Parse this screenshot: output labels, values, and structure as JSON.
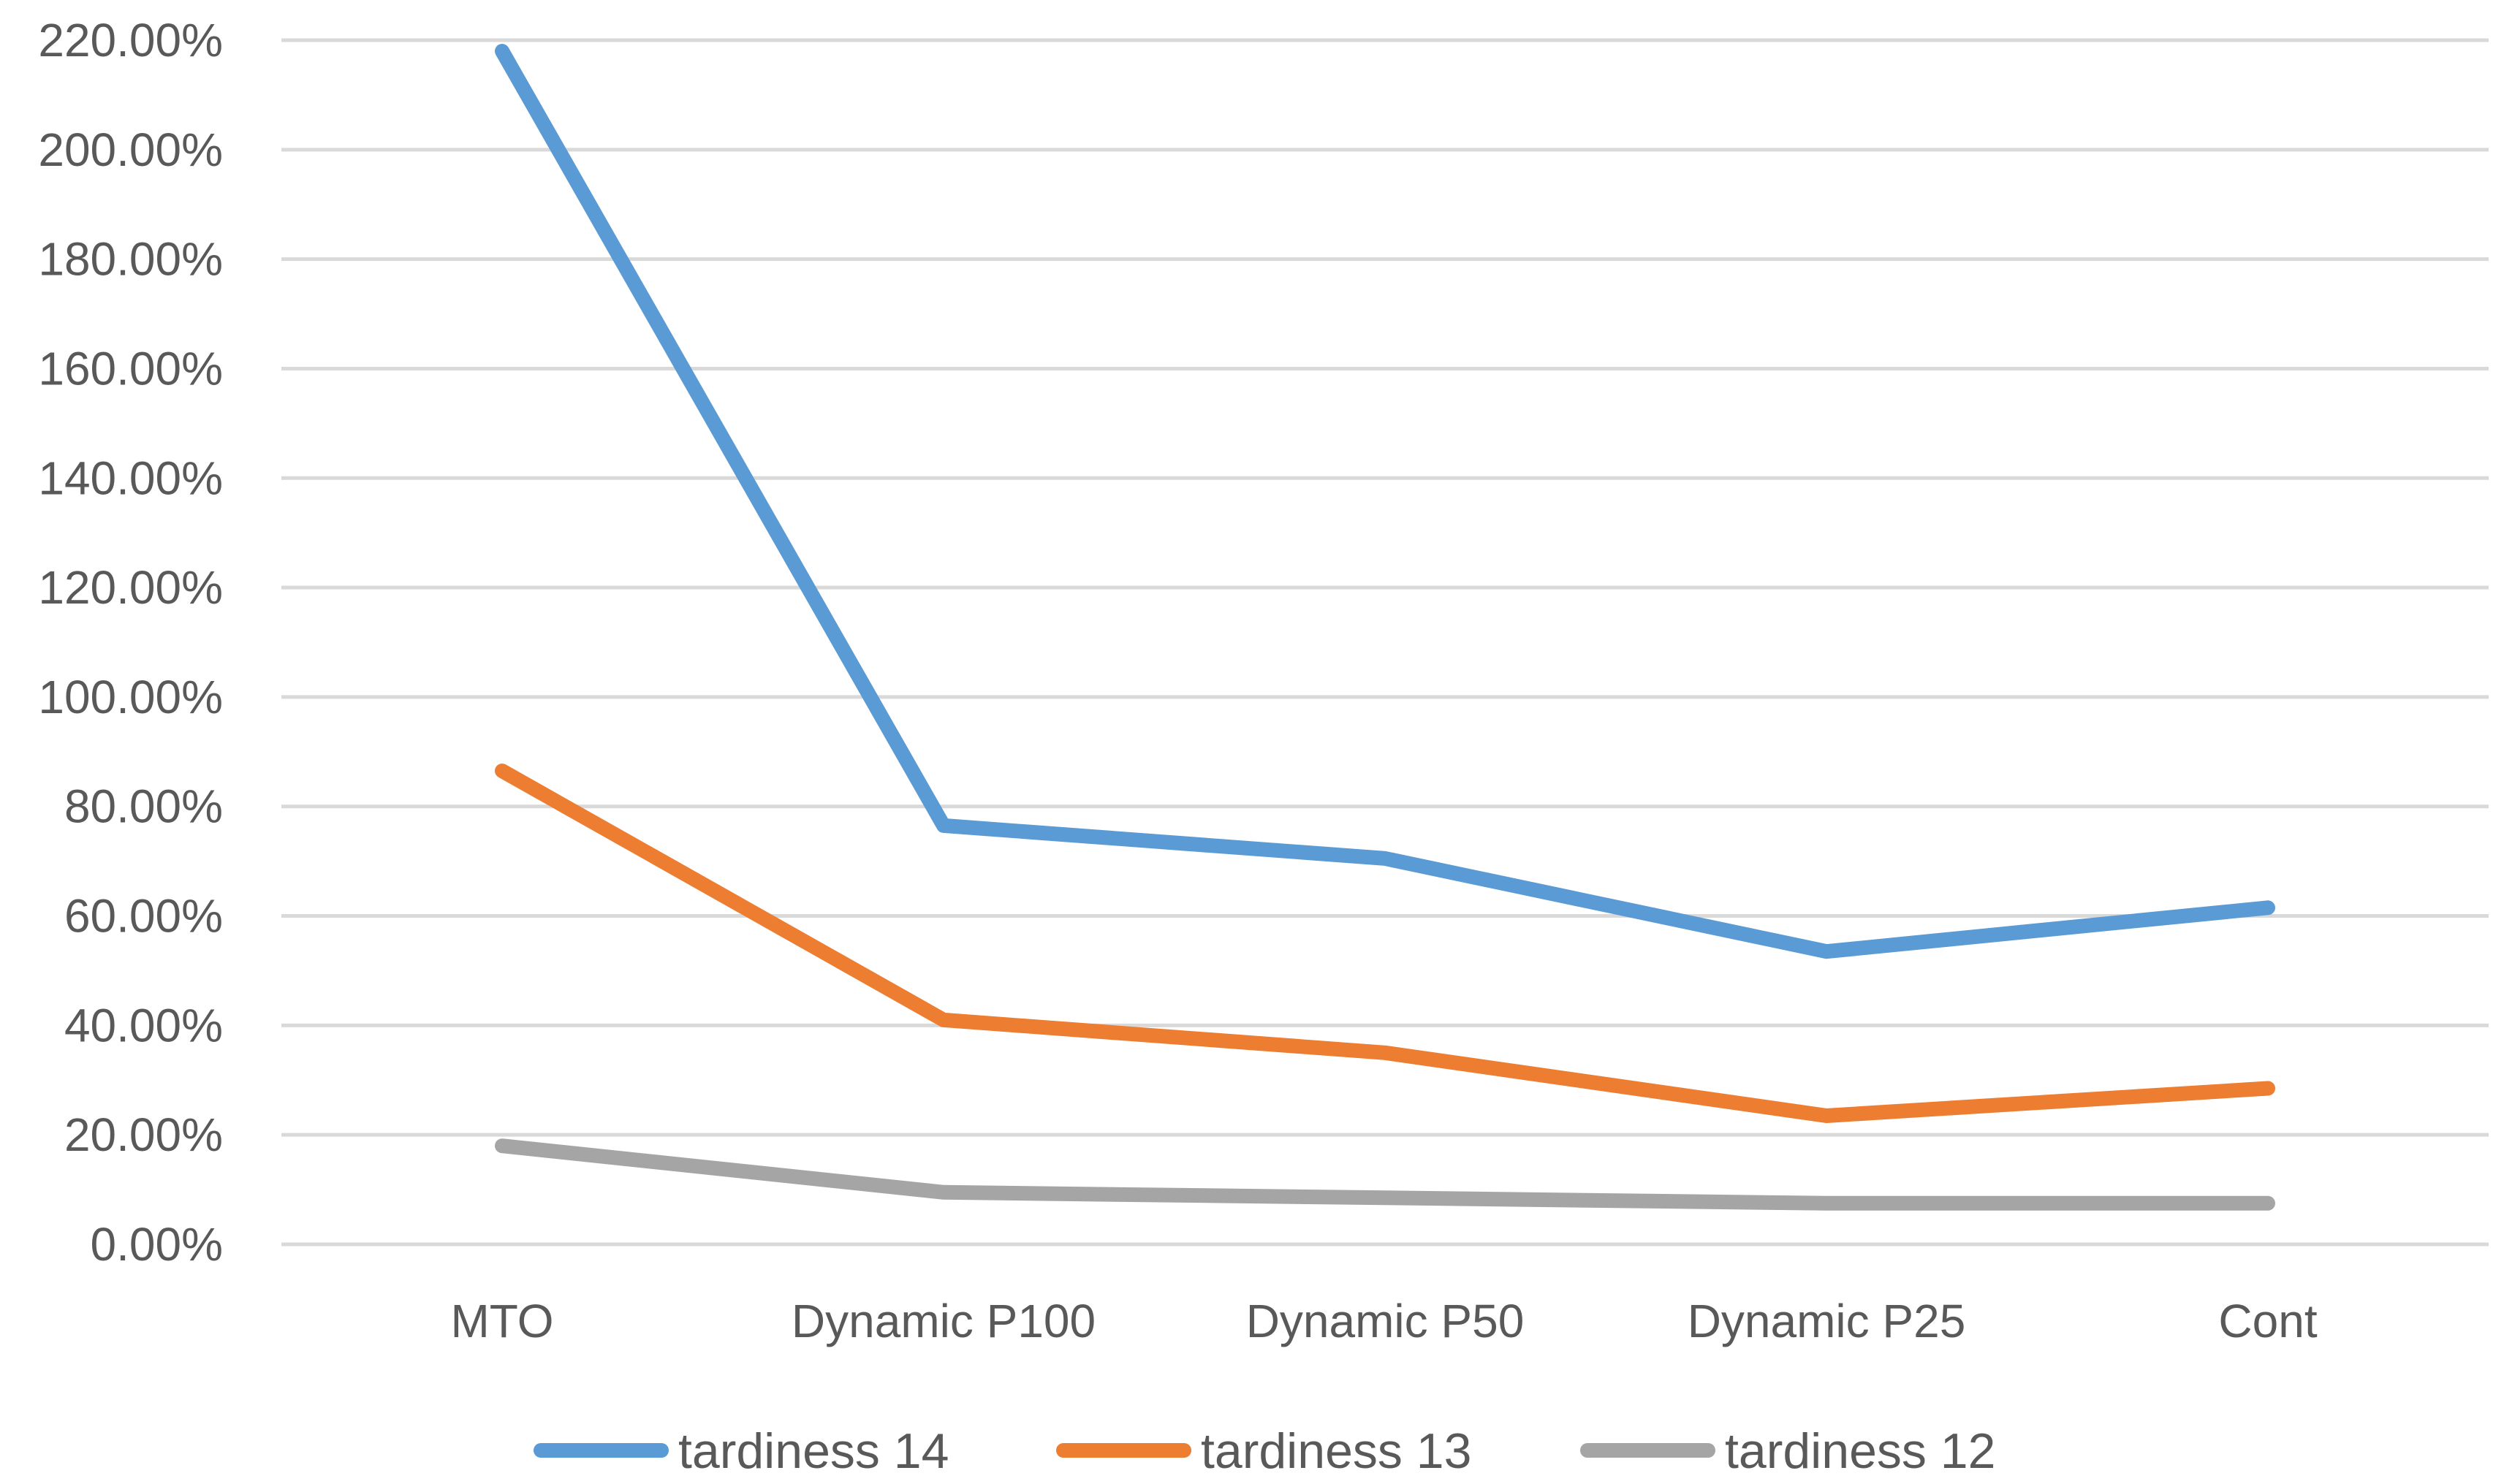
{
  "chart_data": {
    "type": "line",
    "title": "",
    "xlabel": "",
    "ylabel": "",
    "categories": [
      "MTO",
      "Dynamic P100",
      "Dynamic P50",
      "Dynamic P25",
      "Cont"
    ],
    "ylim": [
      0,
      220
    ],
    "ytick_values": [
      0,
      20,
      40,
      60,
      80,
      100,
      120,
      140,
      160,
      180,
      200,
      220
    ],
    "ytick_labels": [
      "0.00%",
      "20.00%",
      "40.00%",
      "60.00%",
      "80.00%",
      "100.00%",
      "120.00%",
      "140.00%",
      "160.00%",
      "180.00%",
      "200.00%",
      "220.00%"
    ],
    "grid": true,
    "legend_position": "bottom",
    "series": [
      {
        "name": "tardiness 14",
        "color": "#5b9bd5",
        "values": [
          218,
          76.5,
          70.5,
          53.5,
          61.5
        ]
      },
      {
        "name": "tardiness 13",
        "color": "#ed7d31",
        "values": [
          86.5,
          41,
          35,
          23.5,
          28.5
        ]
      },
      {
        "name": "tardiness 12",
        "color": "#a5a5a5",
        "values": [
          18,
          9.5,
          8.5,
          7.5,
          7.5
        ]
      }
    ]
  }
}
